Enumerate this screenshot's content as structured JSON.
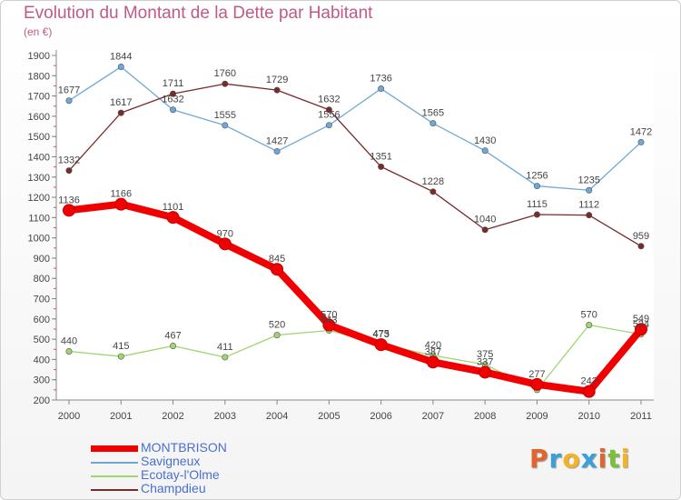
{
  "header": {
    "title": "Evolution du Montant de la Dette par Habitant",
    "subtitle": "(en €)"
  },
  "brand": {
    "letters": [
      "P",
      "r",
      "o",
      "x",
      "i",
      "t",
      "i"
    ],
    "colors": [
      "#e2662b",
      "#3aa0d8",
      "#f5b324",
      "#3aa0d8",
      "#e2662b",
      "#7dbf3a",
      "#f5b324"
    ]
  },
  "chart_data": {
    "type": "line",
    "title": "Evolution du Montant de la Dette par Habitant",
    "ylabel": "(en €)",
    "xlabel": "",
    "x": [
      "2000",
      "2001",
      "2002",
      "2003",
      "2004",
      "2005",
      "2006",
      "2007",
      "2008",
      "2009",
      "2010",
      "2011"
    ],
    "yticks": [
      200,
      300,
      400,
      500,
      600,
      700,
      800,
      900,
      1000,
      1100,
      1200,
      1300,
      1400,
      1500,
      1600,
      1700,
      1800,
      1900
    ],
    "ylim": [
      200,
      1900
    ],
    "grid": false,
    "legend_position": "bottom-left",
    "series": [
      {
        "name": "MONTBRISON",
        "color": "#f00000",
        "values": [
          1136,
          1166,
          1101,
          970,
          845,
          570,
          473,
          387,
          337,
          277,
          242,
          549
        ],
        "labels": [
          "1136",
          "1166",
          "1101",
          "970",
          "845",
          "570",
          "473",
          "387",
          "337",
          "277",
          "242",
          "549"
        ]
      },
      {
        "name": "Savigneux",
        "color": "#6fa8d6",
        "values": [
          1677,
          1844,
          1632,
          1555,
          1427,
          1556,
          1736,
          1565,
          1430,
          1256,
          1235,
          1472
        ],
        "labels": [
          "1677",
          "1844",
          "1632",
          "1555",
          "1427",
          "1556",
          "1736",
          "1565",
          "1430",
          "1256",
          "1235",
          "1472"
        ]
      },
      {
        "name": "Ecotay-l'Olme",
        "color": "#9ed66f",
        "values": [
          440,
          415,
          467,
          411,
          520,
          543,
          475,
          420,
          375,
          250,
          570,
          524
        ],
        "labels": [
          "440",
          "415",
          "467",
          "411",
          "520",
          "543",
          "475",
          "420",
          "375",
          "",
          "570",
          "524"
        ]
      },
      {
        "name": "Champdieu",
        "color": "#7b2a2a",
        "values": [
          1332,
          1617,
          1711,
          1760,
          1729,
          1632,
          1351,
          1228,
          1040,
          1115,
          1112,
          959
        ],
        "labels": [
          "1332",
          "1617",
          "1711",
          "1760",
          "1729",
          "1632",
          "1351",
          "1228",
          "1040",
          "1115",
          "1112",
          "959"
        ]
      }
    ]
  }
}
